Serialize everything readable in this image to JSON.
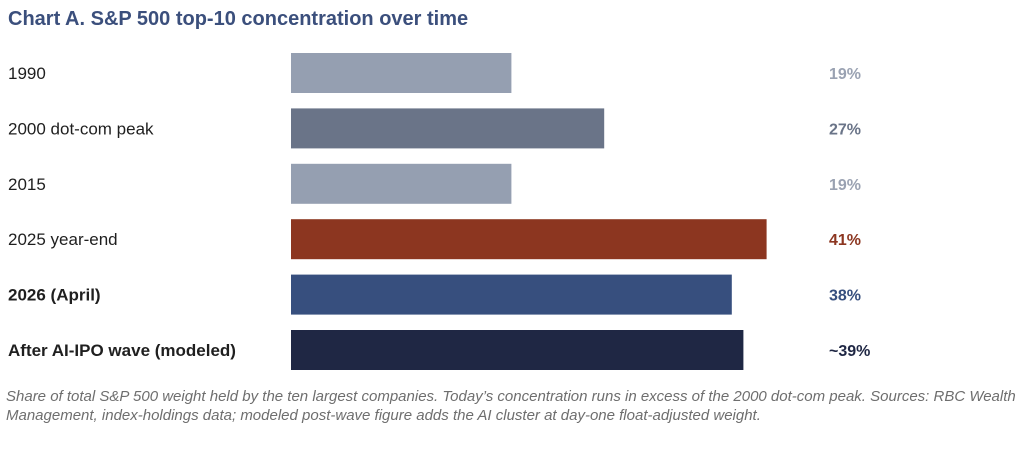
{
  "chart_data": {
    "type": "bar",
    "orientation": "horizontal",
    "title": "Chart A.  S&P 500 top-10 concentration over time",
    "categories": [
      "1990",
      "2000 dot-com peak",
      "2015",
      "2025 year-end",
      "2026 (April)",
      "After AI-IPO wave (modeled)"
    ],
    "values": [
      19,
      27,
      19,
      41,
      38,
      39
    ],
    "value_labels": [
      "19%",
      "27%",
      "19%",
      "41%",
      "38%",
      "~39%"
    ],
    "bold_categories": [
      false,
      false,
      false,
      false,
      true,
      true
    ],
    "bar_colors": [
      "#959fb1",
      "#6a7488",
      "#959fb1",
      "#8c3620",
      "#374f7e",
      "#1f2744"
    ],
    "label_colors": [
      "#9aa2b2",
      "#6a7488",
      "#9aa2b2",
      "#8c3620",
      "#374f7e",
      "#1f2744"
    ],
    "xlim": [
      0,
      48
    ],
    "grid": false,
    "legend": "none"
  },
  "footnote": "Share of total S&P 500 weight held by the ten largest companies. Today’s concentration runs in excess of the 2000 dot-com peak. Sources: RBC Wealth Management, index-holdings data; modeled post-wave figure adds the AI cluster at day-one float-adjusted weight."
}
